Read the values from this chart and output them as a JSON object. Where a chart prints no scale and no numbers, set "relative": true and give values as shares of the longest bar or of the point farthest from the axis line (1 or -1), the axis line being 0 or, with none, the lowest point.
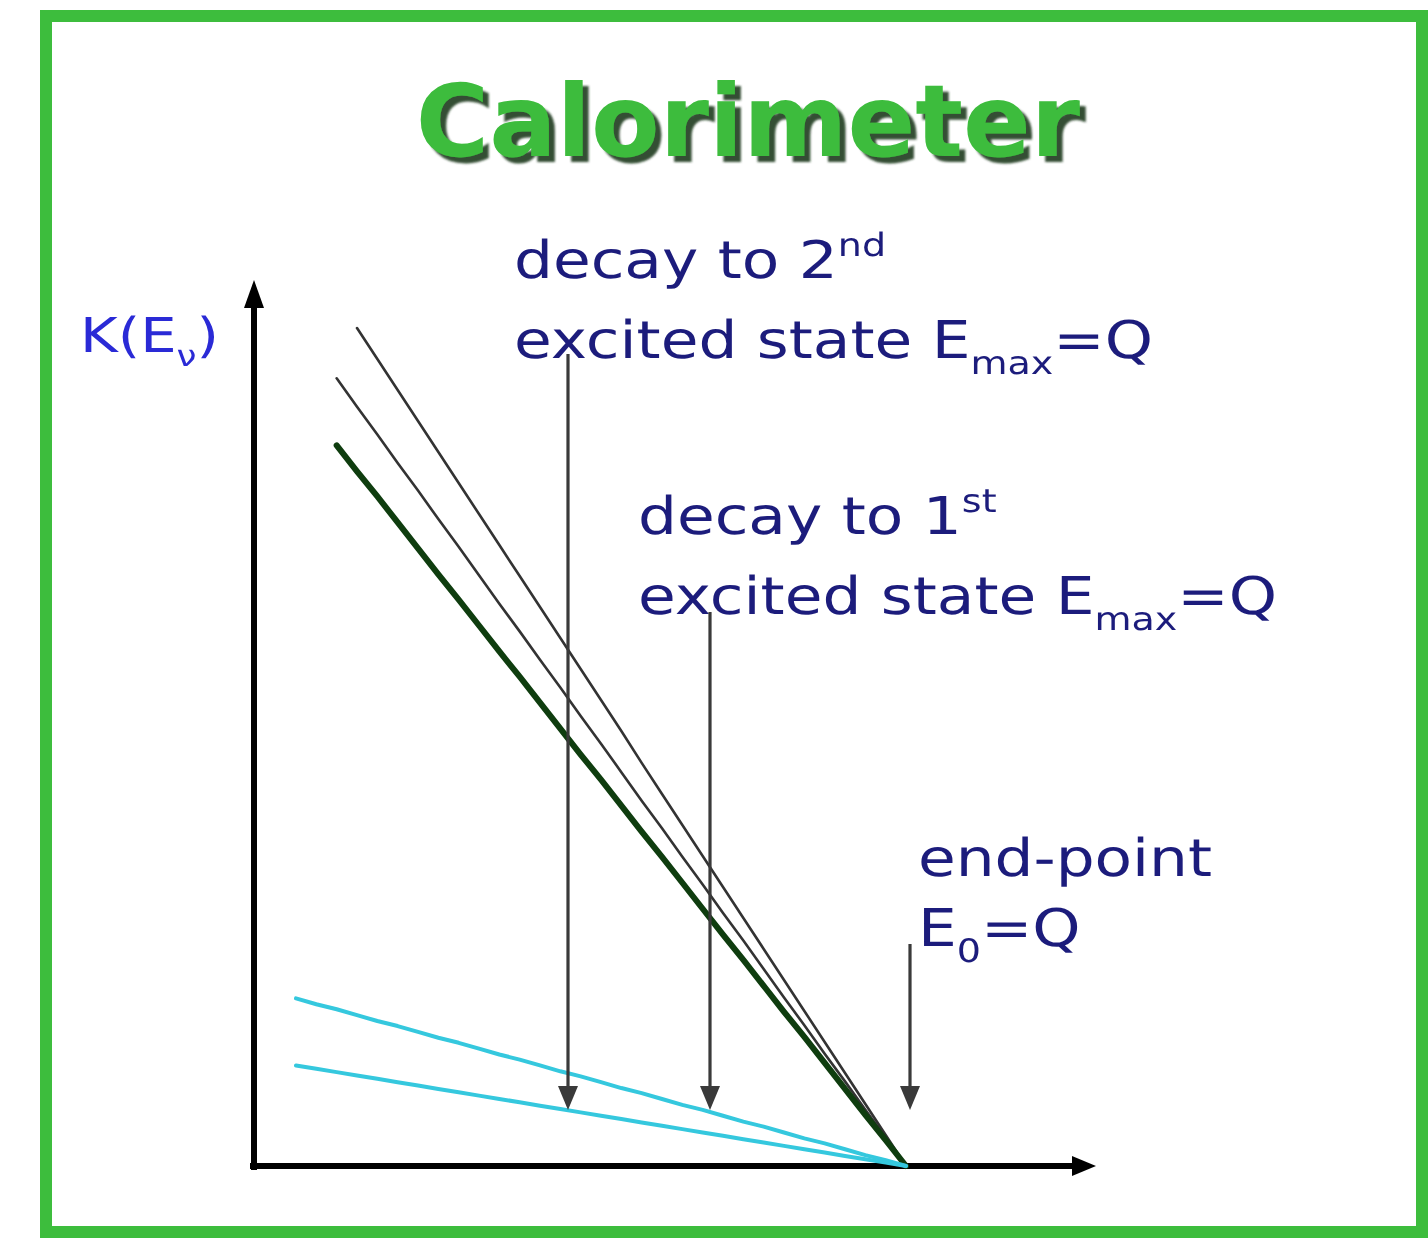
{
  "chart_data": {
    "type": "line",
    "title": "Calorimeter",
    "ylabel": "K(E$_{ν}$)",
    "relative": true,
    "categories": [
      null,
      null,
      null,
      null,
      null,
      null,
      null,
      null,
      null,
      null,
      null,
      null,
      null,
      null,
      null,
      null,
      null,
      null,
      null,
      null,
      null,
      null,
      null,
      null,
      null,
      null,
      null,
      null,
      null,
      null,
      null
    ],
    "series": [
      {
        "color": "#333333",
        "values": [
          null,
          null,
          null,
          1,
          0.963,
          0.926,
          0.889,
          0.852,
          0.815,
          0.778,
          0.741,
          0.704,
          0.667,
          0.63,
          0.593,
          0.556,
          0.519,
          0.481,
          0.444,
          0.407,
          0.37,
          0.333,
          0.296,
          0.259,
          0.222,
          0.185,
          0.148,
          0.111,
          0.074,
          0.037,
          0
        ]
      },
      {
        "color": "#333333",
        "values": [
          null,
          null,
          0.94,
          0.906,
          0.873,
          0.839,
          0.806,
          0.772,
          0.739,
          0.705,
          0.671,
          0.638,
          0.604,
          0.571,
          0.537,
          0.504,
          0.47,
          0.436,
          0.403,
          0.369,
          0.336,
          0.302,
          0.269,
          0.235,
          0.201,
          0.168,
          0.134,
          0.101,
          0.067,
          0.034,
          0
        ]
      },
      {
        "color": "#0f3d0f",
        "values": [
          null,
          null,
          0.86,
          0.829,
          0.799,
          0.768,
          0.737,
          0.706,
          0.676,
          0.645,
          0.614,
          0.584,
          0.553,
          0.522,
          0.491,
          0.461,
          0.43,
          0.399,
          0.369,
          0.338,
          0.307,
          0.276,
          0.246,
          0.215,
          0.184,
          0.154,
          0.123,
          0.092,
          0.061,
          0.031,
          0
        ]
      },
      {
        "color": "#35c8de",
        "values": [
          0.2,
          0.193,
          0.187,
          0.18,
          0.173,
          0.167,
          0.16,
          0.153,
          0.147,
          0.14,
          0.133,
          0.127,
          0.12,
          0.113,
          0.107,
          0.1,
          0.093,
          0.087,
          0.08,
          0.073,
          0.067,
          0.06,
          0.053,
          0.047,
          0.04,
          0.033,
          0.027,
          0.02,
          0.013,
          0.007,
          0
        ]
      },
      {
        "color": "#35c8de",
        "values": [
          0.12,
          0.116,
          0.112,
          0.108,
          0.104,
          0.1,
          0.096,
          0.092,
          0.088,
          0.084,
          0.08,
          0.076,
          0.072,
          0.068,
          0.064,
          0.06,
          0.056,
          0.052,
          0.048,
          0.044,
          0.04,
          0.036,
          0.032,
          0.028,
          0.024,
          0.02,
          0.016,
          0.012,
          0.008,
          0.004,
          0
        ]
      }
    ],
    "annotations": [
      "decay to 2$^{nd}$\nexcited state E$_{max}$=Q",
      "decay to 1$^{st}$\nexcited state E$_{max}$=Q",
      "end-point\nE$_{0}$=Q"
    ]
  }
}
